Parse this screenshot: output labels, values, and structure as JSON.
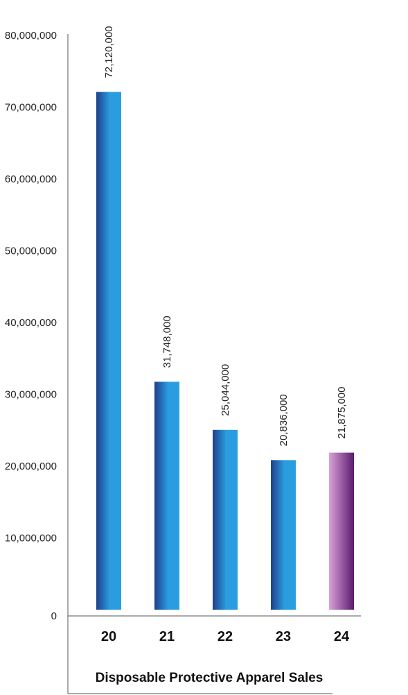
{
  "chart_data": {
    "type": "bar",
    "title": "",
    "xlabel": "Disposable Protective Apparel Sales",
    "ylabel": "",
    "categories": [
      "20",
      "21",
      "22",
      "23",
      "24"
    ],
    "values": [
      72120000,
      31748000,
      25044000,
      20836000,
      21875000
    ],
    "data_labels": [
      "72,120,000",
      "31,748,000",
      "25,044,000",
      "20,836,000",
      "21,875,000"
    ],
    "ylim": [
      0,
      80000000
    ],
    "yticks": [
      0,
      10000000,
      20000000,
      30000000,
      40000000,
      50000000,
      60000000,
      70000000,
      80000000
    ],
    "ytick_labels": [
      "0",
      "10,000,000",
      "20,000,000",
      "30,000,000",
      "40,000,000",
      "50,000,000",
      "60,000,000",
      "70,000,000",
      "80,000,000"
    ],
    "grid": false,
    "legend": "none",
    "colors": {
      "bar_dark": "#1f3f8a",
      "bar_light": "#2a9de0",
      "forecast_light": "#d9a2d8",
      "forecast_dark": "#5a1a6e",
      "axis": "#555555"
    },
    "highlight_index": 4
  }
}
